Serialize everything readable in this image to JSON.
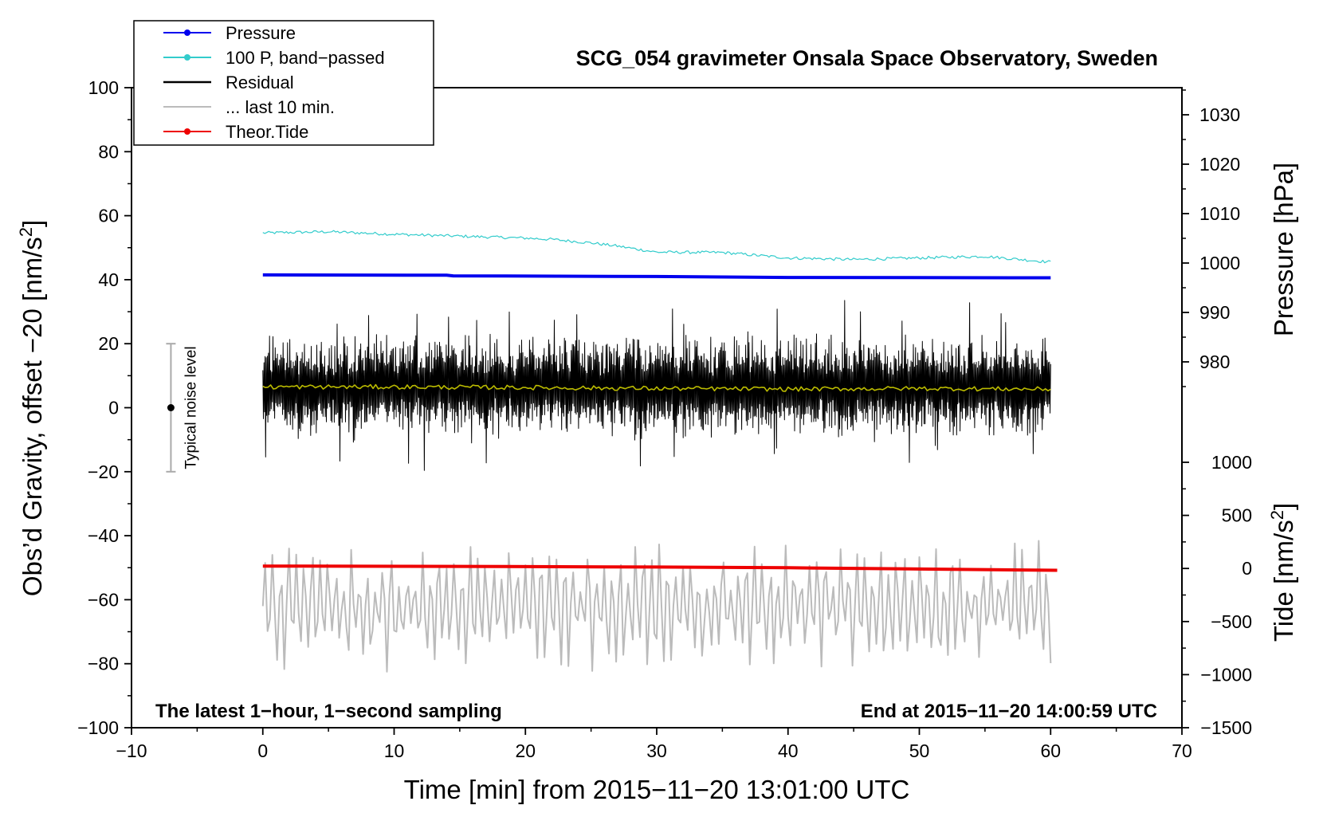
{
  "chart_data": {
    "type": "line",
    "title": "SCG_054 gravimeter Onsala Space Observatory, Sweden",
    "xlabel": "Time [min] from 2015−11−20 13:01:00 UTC",
    "ylabel_left": "Obs'd Gravity, offset −20 [nm/s²]",
    "ylabel_right_top": "Pressure [hPa]",
    "ylabel_right_bottom": "Tide [nm/s²]",
    "xlim": [
      -10,
      70
    ],
    "ylim_left": [
      -100,
      100
    ],
    "pressure_axis_range": [
      975,
      1035
    ],
    "tide_axis_range": [
      -1500,
      1000
    ],
    "x_ticks": [
      "−10",
      "0",
      "10",
      "20",
      "30",
      "40",
      "50",
      "60",
      "70"
    ],
    "x_tick_values": [
      -10,
      0,
      10,
      20,
      30,
      40,
      50,
      60,
      70
    ],
    "y_ticks_left": [
      "100",
      "80",
      "60",
      "40",
      "20",
      "0",
      "−20",
      "−40",
      "−60",
      "−80",
      "−100"
    ],
    "y_tick_values_left": [
      100,
      80,
      60,
      40,
      20,
      0,
      -20,
      -40,
      -60,
      -80,
      -100
    ],
    "pressure_ticks": [
      "1030",
      "1020",
      "1010",
      "1000",
      "990",
      "980"
    ],
    "pressure_tick_values": [
      1030,
      1020,
      1010,
      1000,
      990,
      980
    ],
    "tide_ticks": [
      "1000",
      "500",
      "0",
      "−500",
      "−1000",
      "−1500"
    ],
    "tide_tick_values": [
      1000,
      500,
      0,
      -500,
      -1000,
      -1500
    ],
    "legend_position": "top-left",
    "legend": [
      {
        "label": "Pressure",
        "color": "#0000ee",
        "marker": true
      },
      {
        "label": "100 P, band−passed",
        "color": "#33cccc",
        "marker": true
      },
      {
        "label": "Residual",
        "color": "#000000",
        "marker": false
      },
      {
        "label": "... last 10 min.",
        "color": "#bbbbbb",
        "marker": false
      },
      {
        "label": "Theor.Tide",
        "color": "#ee0000",
        "marker": true
      }
    ],
    "series": [
      {
        "name": "Pressure",
        "color": "#0000ee",
        "x": [
          0,
          14,
          14.5,
          30,
          40,
          60
        ],
        "y": [
          41.5,
          41.4,
          41.2,
          41.0,
          40.7,
          40.6
        ]
      },
      {
        "name": "100 P, band−passed",
        "color": "#33cccc",
        "x": [
          0,
          5,
          10,
          15,
          20,
          22,
          25,
          27,
          30,
          35,
          40,
          45,
          50,
          55,
          60
        ],
        "y": [
          54.6,
          55.0,
          54.2,
          53.6,
          53.0,
          52.6,
          51.5,
          50.5,
          48.6,
          48.5,
          46.8,
          46.3,
          46.8,
          47.3,
          45.5
        ]
      },
      {
        "name": "Residual",
        "color": "#000000",
        "x_range": [
          0,
          60
        ],
        "center": 6.5,
        "typical_envelope": [
          -15,
          30
        ],
        "y_max": 34,
        "y_min": -20
      },
      {
        "name": "Residual smoothed",
        "color": "#bbbb00",
        "x": [
          0,
          10,
          20,
          30,
          40,
          50,
          60
        ],
        "y": [
          6.5,
          6.5,
          6.3,
          6.0,
          5.8,
          6.0,
          5.8
        ]
      },
      {
        "name": "... last 10 min.",
        "color": "#bbbbbb",
        "x_range": [
          0,
          60
        ],
        "center": -62,
        "y_max": -40.5,
        "y_min": -84
      },
      {
        "name": "Theor.Tide",
        "color": "#ee0000",
        "x": [
          0,
          15,
          30,
          40,
          50,
          60.5
        ],
        "y": [
          -49.5,
          -49.6,
          -49.8,
          -50.0,
          -50.4,
          -50.8
        ]
      }
    ],
    "noise_marker": {
      "label": "Typical noise level",
      "x": -7,
      "center": 0,
      "low": -20,
      "high": 20
    },
    "note_left": "The latest 1−hour, 1−second sampling",
    "note_right": "End at 2015−11−20 14:00:59 UTC"
  }
}
